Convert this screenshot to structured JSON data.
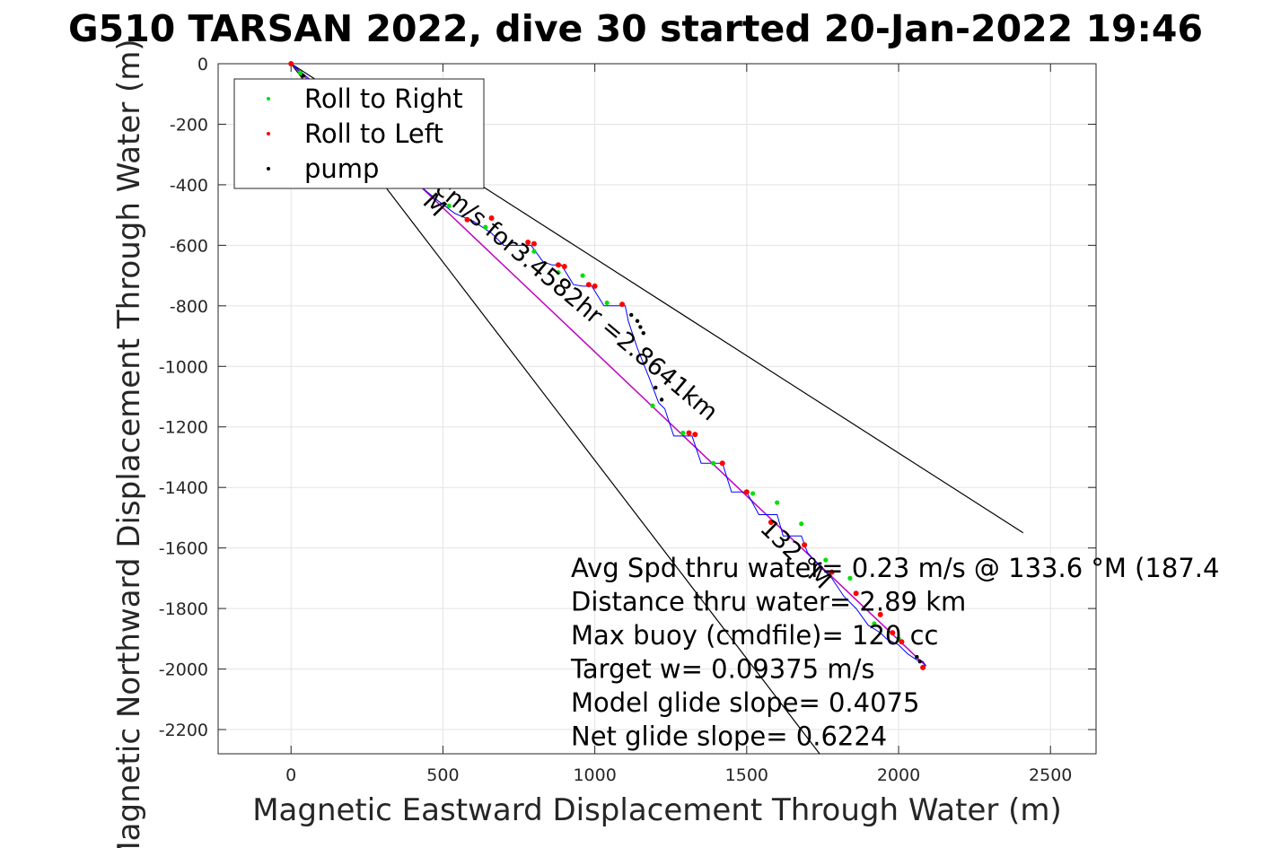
{
  "chart_data": {
    "type": "line",
    "title": "G510 TARSAN 2022, dive 30 started 20-Jan-2022 19:46",
    "xlabel": "Magnetic Eastward Displacement Through Water (m)",
    "ylabel": "Magnetic Northward Displacement Through Water (m)",
    "xlim": [
      -240,
      2650
    ],
    "ylim": [
      -2280,
      0
    ],
    "xticks": [
      0,
      500,
      1000,
      1500,
      2000,
      2500
    ],
    "yticks": [
      0,
      -200,
      -400,
      -600,
      -800,
      -1000,
      -1200,
      -1400,
      -1600,
      -1800,
      -2000,
      -2200
    ],
    "xtick_labels": [
      "0",
      "500",
      "1000",
      "1500",
      "2000",
      "2500"
    ],
    "ytick_labels": [
      "0",
      "-200",
      "-400",
      "-600",
      "-800",
      "-1000",
      "-1200",
      "-1400",
      "-1600",
      "-1800",
      "-2000",
      "-2200"
    ],
    "grid": true,
    "legend_position": "top-left",
    "legend": [
      {
        "name": "Roll to Right",
        "color": "#00e000"
      },
      {
        "name": "Roll to Left",
        "color": "#ff0000"
      },
      {
        "name": "pump",
        "color": "#000000"
      }
    ],
    "colors": {
      "track": "#0000ff",
      "course_line": "#c000c0",
      "bound_lines": "#000000"
    },
    "course_line": {
      "x": [
        0,
        2090
      ],
      "y": [
        0,
        -1990
      ]
    },
    "bound_lines": [
      {
        "x": [
          0,
          2410
        ],
        "y": [
          0,
          -1550
        ]
      },
      {
        "x": [
          0,
          1740
        ],
        "y": [
          0,
          -2280
        ]
      }
    ],
    "track": {
      "x": [
        0,
        60,
        120,
        180,
        240,
        300,
        360,
        420,
        480,
        540,
        600,
        660,
        700,
        760,
        790,
        830,
        860,
        890,
        930,
        960,
        990,
        1030,
        1060,
        1100,
        1110,
        1140,
        1180,
        1210,
        1230,
        1260,
        1290,
        1320,
        1350,
        1380,
        1410,
        1420,
        1450,
        1480,
        1500,
        1540,
        1580,
        1600,
        1620,
        1660,
        1680,
        1700,
        1740,
        1780,
        1820,
        1860,
        1900,
        1940,
        1960,
        2000,
        2030,
        2060,
        2080,
        2090
      ],
      "y": [
        0,
        -50,
        -100,
        -160,
        -220,
        -280,
        -340,
        -400,
        -450,
        -495,
        -520,
        -560,
        -600,
        -600,
        -600,
        -655,
        -665,
        -665,
        -730,
        -735,
        -735,
        -800,
        -800,
        -800,
        -850,
        -940,
        -1040,
        -1120,
        -1140,
        -1230,
        -1230,
        -1230,
        -1320,
        -1320,
        -1320,
        -1320,
        -1415,
        -1415,
        -1415,
        -1490,
        -1490,
        -1490,
        -1560,
        -1560,
        -1560,
        -1615,
        -1660,
        -1700,
        -1760,
        -1800,
        -1855,
        -1880,
        -1900,
        -1920,
        -1950,
        -1970,
        -1975,
        -1990
      ]
    },
    "roll_right": {
      "x": [
        30,
        200,
        520,
        640,
        800,
        880,
        960,
        1040,
        1190,
        1290,
        1390,
        1520,
        1600,
        1680,
        1760,
        1840,
        1920,
        2000
      ],
      "y": [
        -30,
        -180,
        -470,
        -540,
        -620,
        -690,
        -700,
        -790,
        -1130,
        -1220,
        -1320,
        -1420,
        -1450,
        -1520,
        -1640,
        -1700,
        -1850,
        -1900
      ]
    },
    "roll_left": {
      "x": [
        0,
        580,
        660,
        780,
        800,
        880,
        900,
        980,
        1000,
        1090,
        1310,
        1330,
        1420,
        1500,
        1580,
        1690,
        1780,
        1860,
        1940,
        1980,
        2010,
        2080
      ],
      "y": [
        0,
        -515,
        -510,
        -590,
        -595,
        -665,
        -670,
        -730,
        -735,
        -795,
        -1220,
        -1225,
        -1320,
        -1415,
        -1515,
        -1590,
        -1680,
        -1750,
        -1820,
        -1880,
        -1910,
        -1995
      ]
    },
    "pump": {
      "x": [
        40,
        80,
        120,
        1120,
        1140,
        1150,
        1160,
        1200,
        1220,
        2060,
        2070
      ],
      "y": [
        -40,
        -70,
        -100,
        -830,
        -850,
        -870,
        -890,
        -1070,
        -1110,
        -1960,
        -1975
      ]
    },
    "diagonal_annotations": [
      {
        "text": "M",
        "x": 430,
        "y": -460,
        "angle": 46
      },
      {
        "text": "cm/s for3.4582hr =2.8641km",
        "x": 470,
        "y": -420,
        "angle": 40
      },
      {
        "text": "132 °M",
        "x": 1540,
        "y": -1540,
        "angle": 44
      }
    ],
    "stats": [
      "Avg Spd thru water=  0.23 m/s @ 133.6 °M (187.4",
      "Distance thru water=  2.89 km",
      "Max buoy (cmdfile)= 120 cc",
      "Target w= 0.09375 m/s",
      "Model glide slope= 0.4075",
      "Net glide slope= 0.6224"
    ]
  }
}
